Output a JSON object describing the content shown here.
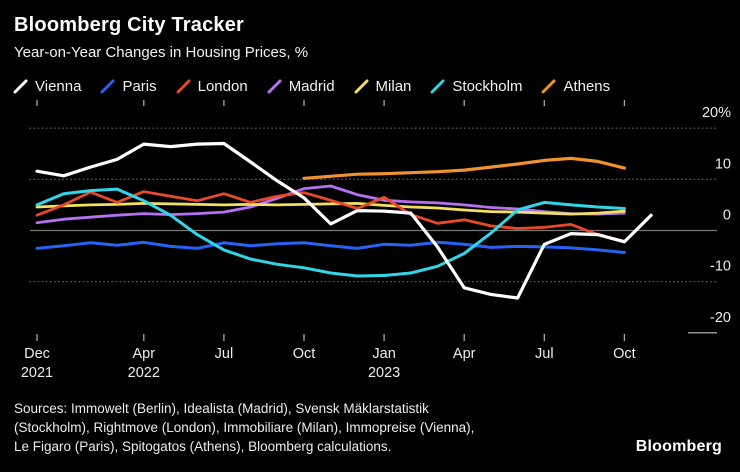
{
  "header": {
    "title": "Bloomberg City Tracker",
    "subtitle": "Year-on-Year Changes in Housing Prices, %"
  },
  "legend": [
    {
      "label": "Vienna",
      "color": "#ffffff"
    },
    {
      "label": "Paris",
      "color": "#2663f2"
    },
    {
      "label": "London",
      "color": "#e8492b"
    },
    {
      "label": "Madrid",
      "color": "#b571f2"
    },
    {
      "label": "Milan",
      "color": "#f2e05e"
    },
    {
      "label": "Stockholm",
      "color": "#30d5e8"
    },
    {
      "label": "Athens",
      "color": "#f0922d"
    }
  ],
  "chart_data": {
    "type": "line",
    "title": "Bloomberg City Tracker",
    "subtitle": "Year-on-Year Changes in Housing Prices, %",
    "ylabel": "%",
    "ylim": [
      -20,
      20
    ],
    "grid": "horizontal-dotted",
    "legend_position": "top",
    "months": [
      "Dec 2021",
      "Jan 2022",
      "Feb 2022",
      "Mar 2022",
      "Apr 2022",
      "May 2022",
      "Jun 2022",
      "Jul 2022",
      "Aug 2022",
      "Sep 2022",
      "Oct 2022",
      "Nov 2022",
      "Dec 2022",
      "Jan 2023",
      "Feb 2023",
      "Mar 2023",
      "Apr 2023",
      "May 2023",
      "Jun 2023",
      "Jul 2023",
      "Aug 2023",
      "Sep 2023",
      "Oct 2023",
      "Nov 2023"
    ],
    "x_ticks": [
      {
        "index": 0,
        "month": "Dec",
        "year": "2021"
      },
      {
        "index": 4,
        "month": "Apr",
        "year": "2022"
      },
      {
        "index": 7,
        "month": "Jul"
      },
      {
        "index": 10,
        "month": "Oct"
      },
      {
        "index": 13,
        "month": "Jan",
        "year": "2023"
      },
      {
        "index": 16,
        "month": "Apr"
      },
      {
        "index": 19,
        "month": "Jul"
      },
      {
        "index": 22,
        "month": "Oct"
      }
    ],
    "y_ticks": [
      {
        "label": "20%",
        "value": 20,
        "line": "dotted"
      },
      {
        "label": "10",
        "value": 10,
        "line": "dotted"
      },
      {
        "label": "0",
        "value": 0,
        "line": "solid"
      },
      {
        "label": "-10",
        "value": -10,
        "line": "dotted"
      },
      {
        "label": "-20",
        "value": -20,
        "line": "edge"
      }
    ],
    "series": [
      {
        "name": "Madrid",
        "color": "#b571f2",
        "width": 2.8,
        "values": [
          1.5,
          2.2,
          2.6,
          3.0,
          3.3,
          3.1,
          3.3,
          3.6,
          4.6,
          6.3,
          8.2,
          8.7,
          7.0,
          5.9,
          5.6,
          5.4,
          5.0,
          4.5,
          4.2,
          3.7,
          3.3,
          3.2,
          3.4
        ]
      },
      {
        "name": "Milan",
        "color": "#f2e05e",
        "width": 2.8,
        "values": [
          4.6,
          4.8,
          5.0,
          5.1,
          5.3,
          5.2,
          5.1,
          5.0,
          5.1,
          5.0,
          5.1,
          5.2,
          5.3,
          4.9,
          4.6,
          4.4,
          4.0,
          3.7,
          3.6,
          3.4,
          3.2,
          3.4,
          3.8
        ]
      },
      {
        "name": "London",
        "color": "#e8492b",
        "width": 2.8,
        "values": [
          3.0,
          5.0,
          7.5,
          5.5,
          7.6,
          6.7,
          5.8,
          7.2,
          5.5,
          6.7,
          7.4,
          5.9,
          4.3,
          6.5,
          3.1,
          1.4,
          2.1,
          0.9,
          0.4,
          0.6,
          1.2,
          -0.8,
          -2.1
        ]
      },
      {
        "name": "Athens",
        "color": "#f0922d",
        "width": 3.2,
        "values": [
          null,
          null,
          null,
          null,
          null,
          null,
          null,
          null,
          null,
          null,
          10.2,
          10.6,
          11.0,
          11.1,
          11.3,
          11.5,
          11.8,
          12.4,
          13.0,
          13.7,
          14.1,
          13.5,
          12.2
        ]
      },
      {
        "name": "Paris",
        "color": "#2663f2",
        "width": 3.0,
        "values": [
          -3.5,
          -3.0,
          -2.4,
          -2.9,
          -2.3,
          -3.1,
          -3.5,
          -2.4,
          -3.0,
          -2.6,
          -2.4,
          -3.0,
          -3.5,
          -2.7,
          -2.9,
          -2.3,
          -2.7,
          -3.3,
          -3.1,
          -3.2,
          -3.4,
          -3.8,
          -4.3
        ]
      },
      {
        "name": "Stockholm",
        "color": "#30d5e8",
        "width": 3.0,
        "values": [
          5.0,
          7.2,
          7.8,
          8.1,
          5.8,
          3.0,
          -0.8,
          -3.8,
          -5.6,
          -6.6,
          -7.3,
          -8.3,
          -8.9,
          -8.8,
          -8.3,
          -7.0,
          -4.5,
          -0.5,
          4.0,
          5.5,
          5.0,
          4.6,
          4.3
        ]
      },
      {
        "name": "Vienna",
        "color": "#ffffff",
        "width": 3.2,
        "values": [
          11.6,
          10.7,
          12.4,
          13.9,
          16.9,
          16.4,
          16.9,
          17.0,
          13.4,
          9.7,
          6.4,
          1.3,
          3.9,
          3.8,
          3.4,
          -3.2,
          -11.2,
          -12.5,
          -13.2,
          -2.7,
          -0.6,
          -0.8,
          -2.2,
          3.0
        ]
      }
    ]
  },
  "footer": {
    "lines": [
      "Sources: Immowelt (Berlin), Idealista (Madrid), Svensk Mäklarstatistik",
      "(Stockholm), Rightmove (London), Immobiliare (Milan), Immopreise (Vienna),",
      "Le Figaro (Paris), Spitogatos (Athens), Bloomberg calculations."
    ],
    "logo": "Bloomberg"
  }
}
